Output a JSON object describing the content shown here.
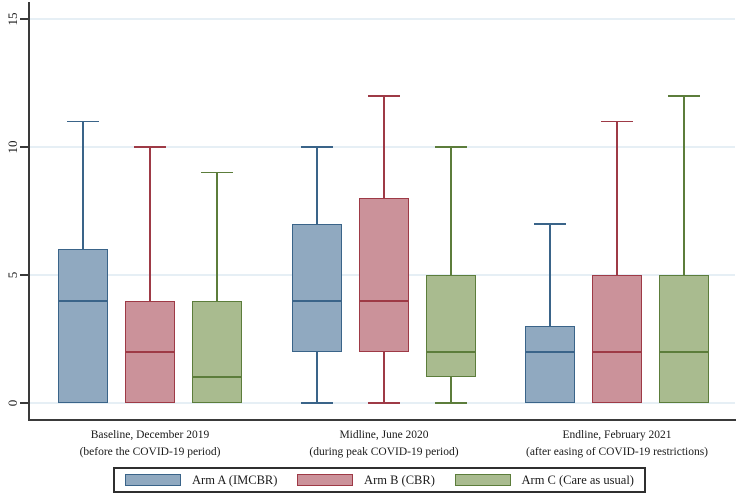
{
  "chart_data": {
    "type": "box",
    "title": "",
    "xlabel": "",
    "ylabel": "",
    "ylim": [
      0,
      15
    ],
    "yticks": [
      0,
      5,
      10,
      15
    ],
    "grid": true,
    "grid_color": "#E6EFF5",
    "axis_color": "#3A3A3A",
    "text_color": "#1a1a1a",
    "background": "#ffffff",
    "legend_position": "bottom",
    "groups": [
      {
        "label_line1": "Baseline, December 2019",
        "label_line2": "(before the COVID-19 period)"
      },
      {
        "label_line1": "Midline, June 2020",
        "label_line2": "(during peak COVID-19 period)"
      },
      {
        "label_line1": "Endline, February 2021",
        "label_line2": "(after easing of COVID-19 restrictions)"
      }
    ],
    "series": [
      {
        "name": "Arm A (IMCBR)",
        "fill": "#90A9C0",
        "stroke": "#3A6489",
        "boxes": [
          {
            "group": 0,
            "whisker_low": 0,
            "q1": 0,
            "median": 4,
            "q3": 6,
            "whisker_high": 11
          },
          {
            "group": 1,
            "whisker_low": 0,
            "q1": 2,
            "median": 4,
            "q3": 7,
            "whisker_high": 10
          },
          {
            "group": 2,
            "whisker_low": 0,
            "q1": 0,
            "median": 2,
            "q3": 3,
            "whisker_high": 7
          }
        ]
      },
      {
        "name": "Arm B (CBR)",
        "fill": "#CB929A",
        "stroke": "#9E3A46",
        "boxes": [
          {
            "group": 0,
            "whisker_low": 0,
            "q1": 0,
            "median": 2,
            "q3": 4,
            "whisker_high": 10
          },
          {
            "group": 1,
            "whisker_low": 0,
            "q1": 2,
            "median": 4,
            "q3": 8,
            "whisker_high": 12
          },
          {
            "group": 2,
            "whisker_low": 0,
            "q1": 0,
            "median": 2,
            "q3": 5,
            "whisker_high": 11
          }
        ]
      },
      {
        "name": "Arm C (Care as usual)",
        "fill": "#A9BB8F",
        "stroke": "#5C7D3B",
        "boxes": [
          {
            "group": 0,
            "whisker_low": 0,
            "q1": 0,
            "median": 1,
            "q3": 4,
            "whisker_high": 9
          },
          {
            "group": 1,
            "whisker_low": 0,
            "q1": 1,
            "median": 2,
            "q3": 5,
            "whisker_high": 10
          },
          {
            "group": 2,
            "whisker_low": 0,
            "q1": 0,
            "median": 2,
            "q3": 5,
            "whisker_high": 12
          }
        ]
      }
    ]
  }
}
